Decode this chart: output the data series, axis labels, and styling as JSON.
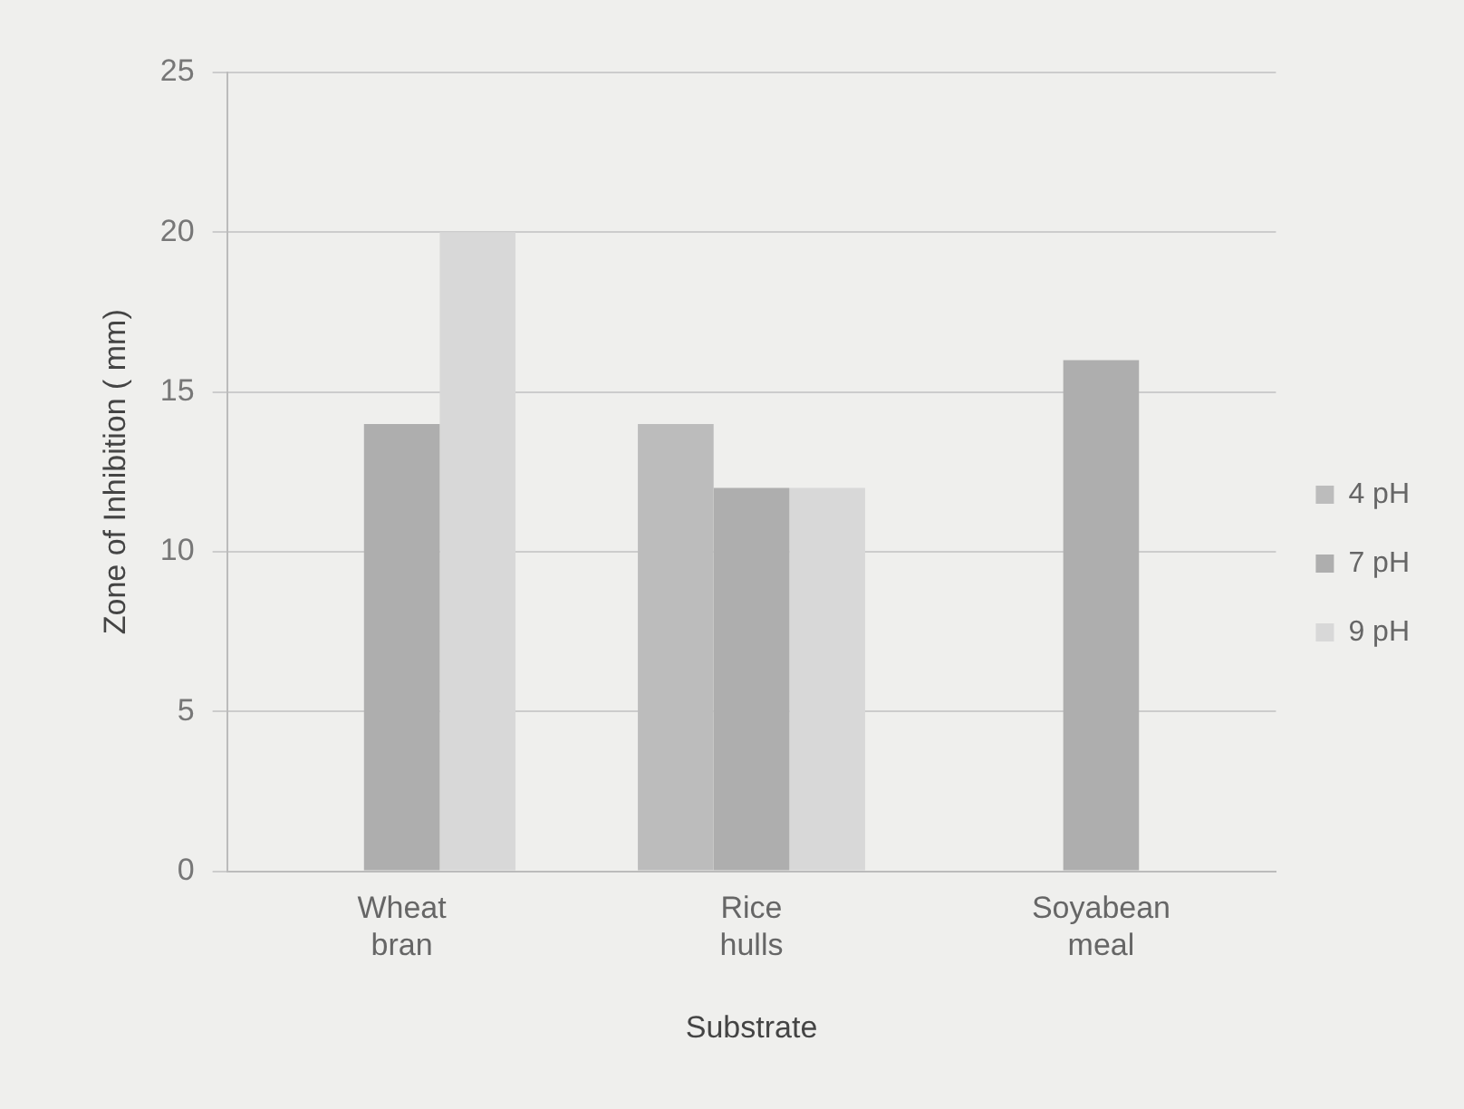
{
  "chart_data": {
    "type": "bar",
    "xlabel": "Substrate",
    "ylabel": "Zone of Inhibition ( mm)",
    "categories": [
      "Wheat bran",
      "Rice hulls",
      "Soyabean meal"
    ],
    "series": [
      {
        "name": "4 pH",
        "color": "#bcbcbc",
        "values": [
          null,
          14,
          null
        ]
      },
      {
        "name": "7 pH",
        "color": "#aeaeae",
        "values": [
          14,
          12,
          16
        ]
      },
      {
        "name": "9 pH",
        "color": "#d8d8d8",
        "values": [
          20,
          12,
          null
        ]
      }
    ],
    "ylim": [
      0,
      25
    ],
    "yticks": [
      0,
      5,
      10,
      15,
      20,
      25
    ],
    "grid": "y",
    "legend": "right"
  }
}
